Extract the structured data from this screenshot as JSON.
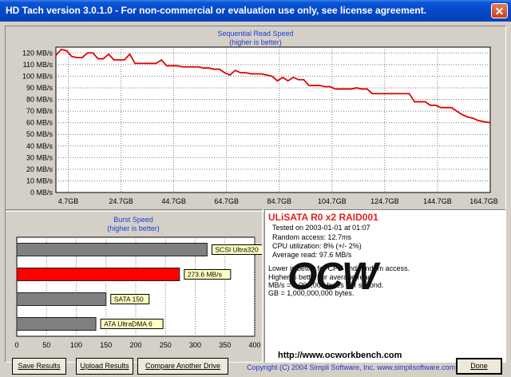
{
  "window": {
    "title": "HD Tach version 3.0.1.0  - For non-commercial or evaluation use only, see license agreement."
  },
  "read_chart": {
    "title": "Sequential Read Speed",
    "subtitle": "(higher is better)"
  },
  "burst_chart": {
    "title": "Burst Speed",
    "subtitle": "(higher is better)"
  },
  "results": {
    "drive": "ULiSATA R0 x2 RAID001",
    "tested": "Tested on 2003-01-01 at 01:07",
    "random_access": "Random access: 12.7ms",
    "cpu": "CPU utilization: 8% (+/- 2%)",
    "avg_read": "Average read: 97.6 MB/s",
    "notes": [
      "Lower is better for CPU and random access.",
      "Higher is better for average read.",
      "MB/s = 1,000,000 bytes per second.",
      "GB = 1,000,000,000 bytes."
    ],
    "logo_text": "OCW",
    "url": "http://www.ocworkbench.com"
  },
  "buttons": {
    "save": "Save Results",
    "upload": "Upload Results",
    "compare": "Compare Another Drive",
    "exit": "Done"
  },
  "footer": {
    "copyright": "Copyright (C) 2004 Simpli Software, Inc. www.simplisoftware.com"
  },
  "colors": {
    "line": "#e00000",
    "grid": "#666666",
    "bar_gray": "#808080",
    "bar_red": "#ff0000",
    "label_bg": "#ffffc0",
    "title_blue": "#1c3bd6"
  },
  "chart_data": [
    {
      "type": "line",
      "title": "Sequential Read Speed",
      "subtitle": "(higher is better)",
      "xlabel": "",
      "ylabel": "",
      "x_ticks": [
        "4.7GB",
        "24.7GB",
        "44.7GB",
        "64.7GB",
        "84.7GB",
        "104.7GB",
        "124.7GB",
        "144.7GB",
        "164.7GB"
      ],
      "y_ticks": [
        "0 MB/s",
        "10 MB/s",
        "20 MB/s",
        "30 MB/s",
        "40 MB/s",
        "50 MB/s",
        "60 MB/s",
        "70 MB/s",
        "80 MB/s",
        "90 MB/s",
        "100 MB/s",
        "110 MB/s",
        "120 MB/s"
      ],
      "ylim": [
        0,
        125
      ],
      "xlim": [
        0,
        164.7
      ],
      "grid": true,
      "x": [
        0,
        2,
        4,
        6,
        8,
        10,
        12,
        14,
        16,
        18,
        20,
        22,
        24,
        26,
        28,
        30,
        32,
        34,
        36,
        38,
        40,
        42,
        44,
        46,
        48,
        50,
        52,
        54,
        56,
        58,
        60,
        62,
        64,
        66,
        68,
        70,
        72,
        74,
        76,
        78,
        80,
        82,
        84,
        86,
        88,
        90,
        92,
        94,
        96,
        98,
        100,
        102,
        104,
        106,
        108,
        110,
        112,
        114,
        116,
        118,
        120,
        122,
        124,
        126,
        128,
        130,
        132,
        134,
        136,
        138,
        140,
        142,
        144,
        146,
        148,
        150,
        152,
        154,
        156,
        158,
        160,
        162,
        164.7
      ],
      "y": [
        118,
        123,
        122,
        117,
        116,
        116,
        120,
        120,
        115,
        115,
        119,
        114,
        114,
        114,
        119,
        111,
        111,
        111,
        111,
        111,
        114,
        109,
        109,
        109,
        108,
        108,
        108,
        108,
        107,
        107,
        106,
        106,
        103,
        101,
        105,
        103,
        103,
        102,
        102,
        102,
        101,
        100,
        96,
        99,
        96,
        99,
        97,
        97,
        92,
        92,
        92,
        91,
        91,
        89,
        89,
        89,
        89,
        90,
        89,
        89,
        85,
        85,
        85,
        85,
        85,
        85,
        85,
        85,
        78,
        78,
        78,
        75,
        75,
        73,
        73,
        73,
        70,
        67,
        65,
        64,
        62,
        61,
        60
      ]
    },
    {
      "type": "bar",
      "orientation": "horizontal",
      "title": "Burst Speed",
      "subtitle": "(higher is better)",
      "categories": [
        "SCSI Ultra320",
        "273.6 MB/s",
        "SATA 150",
        "ATA UltraDMA 6"
      ],
      "values": [
        320,
        273.6,
        150,
        133
      ],
      "highlight": [
        false,
        true,
        false,
        false
      ],
      "x_ticks": [
        "0",
        "50",
        "100",
        "150",
        "200",
        "250",
        "300",
        "350",
        "400"
      ],
      "xlim": [
        0,
        400
      ],
      "grid": true
    }
  ]
}
